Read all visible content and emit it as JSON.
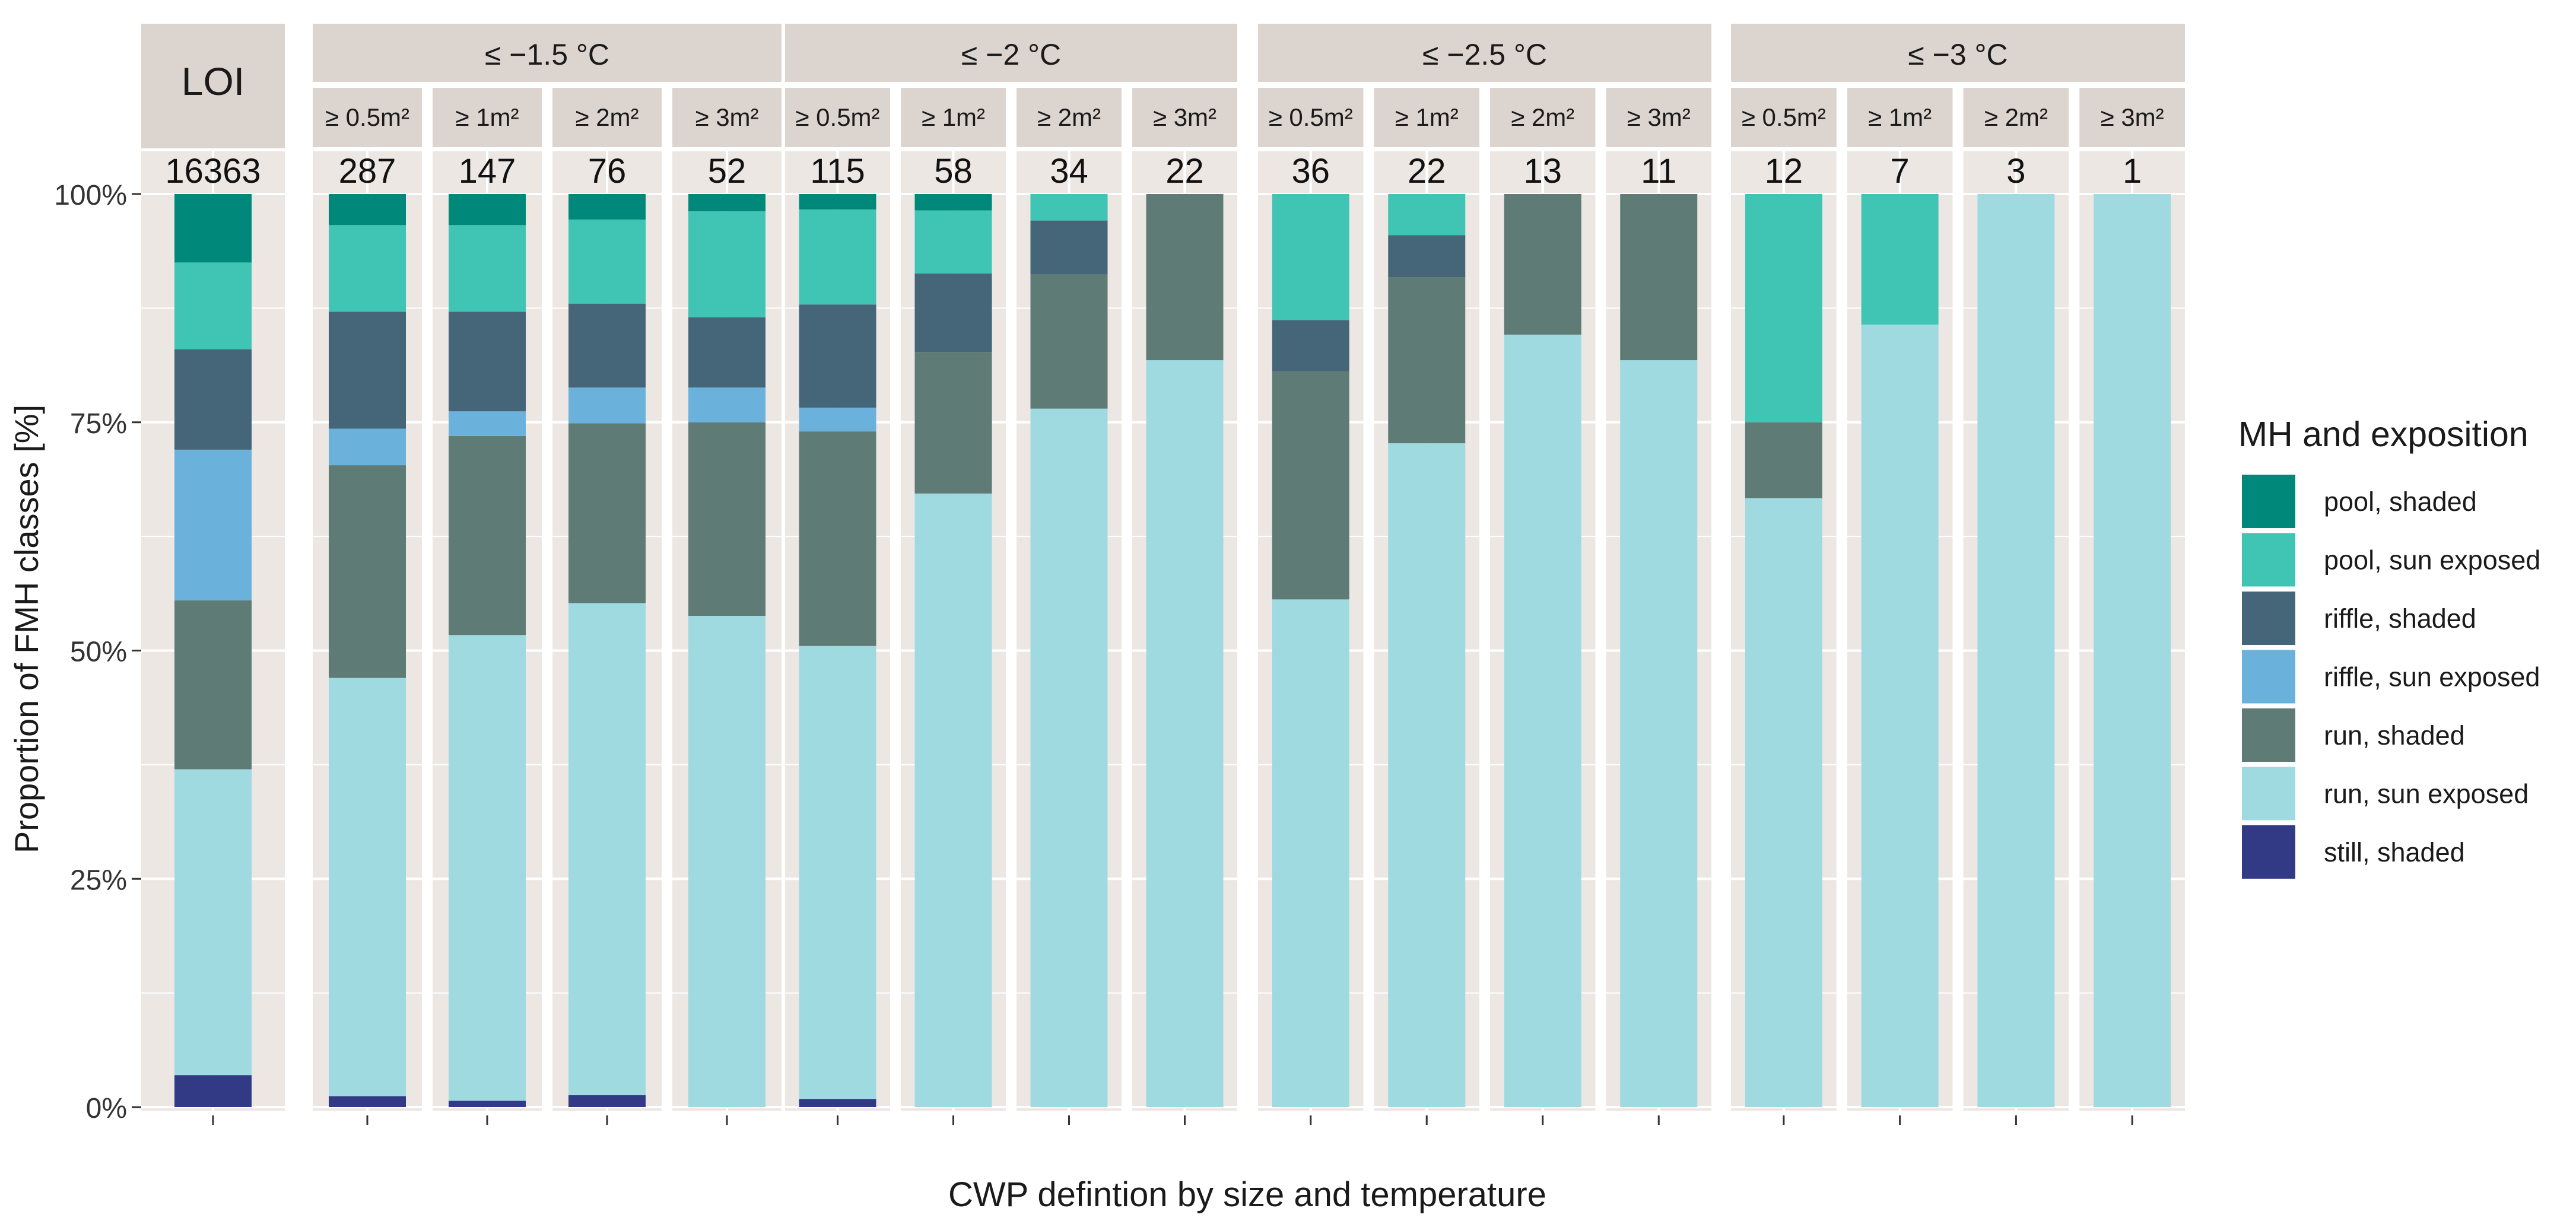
{
  "chart_data": {
    "type": "bar",
    "stacked": true,
    "ylabel": "Proportion of FMH classes [%]",
    "xlabel": "CWP defintion by size and temperature",
    "ylim": [
      0,
      100
    ],
    "y_ticks": [
      0,
      25,
      50,
      75,
      100
    ],
    "y_tick_labels": [
      "0%",
      "25%",
      "50%",
      "75%",
      "100%"
    ],
    "grid": true,
    "legend": {
      "title": "MH and exposition",
      "position": "right",
      "entries": [
        {
          "label": "pool, shaded",
          "color": "#00897B"
        },
        {
          "label": "pool, sun exposed",
          "color": "#40C4B4"
        },
        {
          "label": "riffle, shaded",
          "color": "#456679"
        },
        {
          "label": "riffle, sun exposed",
          "color": "#6AB2DC"
        },
        {
          "label": "run, shaded",
          "color": "#5F7B76"
        },
        {
          "label": "run, sun exposed",
          "color": "#9EDAE0"
        },
        {
          "label": "still, shaded",
          "color": "#323A86"
        }
      ]
    },
    "stack_order": [
      "still, shaded",
      "run, sun exposed",
      "run, shaded",
      "riffle, sun exposed",
      "riffle, shaded",
      "pool, sun exposed",
      "pool, shaded"
    ],
    "panels": [
      {
        "strip": "",
        "bars": [
          {
            "label": "LOI",
            "n": "16363",
            "values": [
              3.5,
              33.5,
              18.5,
              16.5,
              11.0,
              9.5,
              7.5
            ]
          }
        ]
      },
      {
        "strip": "≤ −1.5 °C",
        "bars": [
          {
            "label": "≥ 0.5m²",
            "n": "287",
            "values": [
              1.2,
              45.8,
              23.3,
              4.0,
              12.8,
              9.5,
              3.4
            ]
          },
          {
            "label": "≥ 1m²",
            "n": "147",
            "values": [
              0.7,
              51.0,
              21.8,
              2.7,
              10.9,
              9.5,
              3.4
            ]
          },
          {
            "label": "≥ 2m²",
            "n": "76",
            "values": [
              1.3,
              53.9,
              19.7,
              3.9,
              9.2,
              9.2,
              2.8
            ]
          },
          {
            "label": "≥ 3m²",
            "n": "52",
            "values": [
              0,
              53.8,
              21.2,
              3.8,
              7.7,
              11.6,
              1.9
            ]
          }
        ]
      },
      {
        "strip": "≤ −2 °C",
        "bars": [
          {
            "label": "≥ 0.5m²",
            "n": "115",
            "values": [
              0.9,
              49.6,
              23.5,
              2.6,
              11.3,
              10.4,
              1.7
            ]
          },
          {
            "label": "≥ 1m²",
            "n": "58",
            "values": [
              0,
              67.2,
              15.5,
              0,
              8.6,
              6.9,
              1.8
            ]
          },
          {
            "label": "≥ 2m²",
            "n": "34",
            "values": [
              0,
              76.5,
              14.7,
              0,
              5.9,
              2.9,
              0
            ]
          },
          {
            "label": "≥ 3m²",
            "n": "22",
            "values": [
              0,
              81.8,
              18.2,
              0,
              0,
              0,
              0
            ]
          }
        ]
      },
      {
        "strip": "≤ −2.5 °C",
        "bars": [
          {
            "label": "≥ 0.5m²",
            "n": "36",
            "values": [
              0,
              55.6,
              25.0,
              0,
              5.6,
              13.8,
              0
            ]
          },
          {
            "label": "≥ 1m²",
            "n": "22",
            "values": [
              0,
              72.7,
              18.2,
              0,
              4.6,
              4.5,
              0
            ]
          },
          {
            "label": "≥ 2m²",
            "n": "13",
            "values": [
              0,
              84.6,
              15.4,
              0,
              0,
              0,
              0
            ]
          },
          {
            "label": "≥ 3m²",
            "n": "11",
            "values": [
              0,
              81.8,
              18.2,
              0,
              0,
              0,
              0
            ]
          }
        ]
      },
      {
        "strip": "≤ −3 °C",
        "bars": [
          {
            "label": "≥ 0.5m²",
            "n": "12",
            "values": [
              0,
              66.7,
              8.3,
              0,
              0,
              25.0,
              0
            ]
          },
          {
            "label": "≥ 1m²",
            "n": "7",
            "values": [
              0,
              85.7,
              0,
              0,
              0,
              14.3,
              0
            ]
          },
          {
            "label": "≥ 2m²",
            "n": "3",
            "values": [
              0,
              100,
              0,
              0,
              0,
              0,
              0
            ]
          },
          {
            "label": "≥ 3m²",
            "n": "1",
            "values": [
              0,
              100,
              0,
              0,
              0,
              0,
              0
            ]
          }
        ]
      }
    ]
  }
}
